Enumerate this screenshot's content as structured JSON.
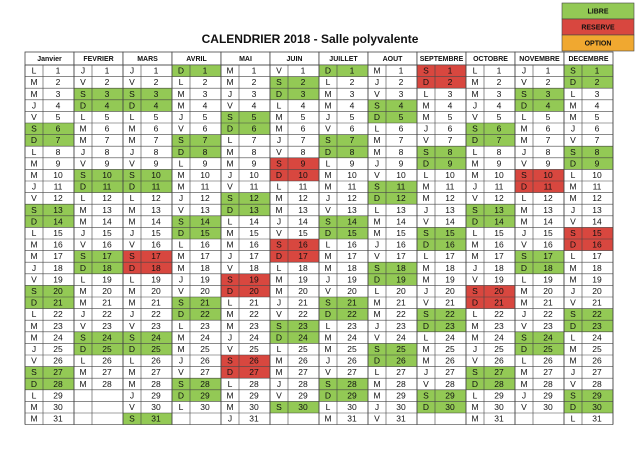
{
  "title": "CALENDRIER 2018 - Salle polyvalente",
  "legend": [
    {
      "label": "LIBRE",
      "color": "#93c955"
    },
    {
      "label": "RESERVE",
      "color": "#d8473f"
    },
    {
      "label": "OPTION",
      "color": "#f0a830"
    }
  ],
  "months": [
    {
      "name": "Janvier",
      "letters": [
        "L",
        "M",
        "M",
        "J",
        "V",
        "S",
        "D",
        "L",
        "M",
        "M",
        "J",
        "V",
        "S",
        "D",
        "L",
        "M",
        "M",
        "J",
        "V",
        "S",
        "D",
        "L",
        "M",
        "M",
        "J",
        "V",
        "S",
        "D",
        "L",
        "M",
        "M"
      ],
      "numbers": [
        1,
        2,
        3,
        4,
        5,
        6,
        7,
        8,
        9,
        10,
        11,
        12,
        13,
        14,
        15,
        16,
        17,
        18,
        19,
        20,
        21,
        22,
        23,
        24,
        25,
        26,
        27,
        28,
        29,
        30,
        31
      ],
      "colors": [
        null,
        null,
        null,
        null,
        null,
        "#93c955",
        "#93c955",
        null,
        null,
        null,
        null,
        null,
        "#93c955",
        "#93c955",
        null,
        null,
        null,
        null,
        null,
        "#93c955",
        "#93c955",
        null,
        null,
        null,
        null,
        null,
        "#93c955",
        "#93c955",
        null,
        null,
        null
      ]
    },
    {
      "name": "FEVRIER",
      "letters": [
        "J",
        "V",
        "S",
        "D",
        "L",
        "M",
        "M",
        "J",
        "V",
        "S",
        "D",
        "L",
        "M",
        "M",
        "J",
        "V",
        "S",
        "D",
        "L",
        "M",
        "M",
        "J",
        "V",
        "S",
        "D",
        "L",
        "M",
        "M"
      ],
      "numbers": [
        1,
        2,
        3,
        4,
        5,
        6,
        7,
        8,
        9,
        10,
        11,
        12,
        13,
        14,
        15,
        16,
        17,
        18,
        19,
        20,
        21,
        22,
        23,
        24,
        25,
        26,
        27,
        28
      ],
      "colors": [
        null,
        null,
        "#93c955",
        "#93c955",
        null,
        null,
        null,
        null,
        null,
        "#93c955",
        "#93c955",
        null,
        null,
        null,
        null,
        null,
        "#93c955",
        "#93c955",
        null,
        null,
        null,
        null,
        null,
        "#93c955",
        "#93c955",
        null,
        null,
        null
      ]
    },
    {
      "name": "MARS",
      "letters": [
        "J",
        "V",
        "S",
        "D",
        "L",
        "M",
        "M",
        "J",
        "V",
        "S",
        "D",
        "L",
        "M",
        "M",
        "J",
        "V",
        "S",
        "D",
        "L",
        "M",
        "M",
        "J",
        "V",
        "S",
        "D",
        "L",
        "M",
        "M",
        "J",
        "V",
        "S"
      ],
      "numbers": [
        1,
        2,
        3,
        4,
        5,
        6,
        7,
        8,
        9,
        10,
        11,
        12,
        13,
        14,
        15,
        16,
        17,
        18,
        19,
        20,
        21,
        22,
        23,
        24,
        25,
        26,
        27,
        28,
        29,
        30,
        31
      ],
      "colors": [
        null,
        null,
        "#93c955",
        "#93c955",
        null,
        null,
        null,
        null,
        null,
        "#93c955",
        "#93c955",
        null,
        null,
        null,
        null,
        null,
        "#d8473f",
        "#d8473f",
        null,
        null,
        null,
        null,
        null,
        "#93c955",
        "#93c955",
        null,
        null,
        null,
        null,
        null,
        "#93c955"
      ]
    },
    {
      "name": "AVRIL",
      "letters": [
        "D",
        "L",
        "M",
        "M",
        "J",
        "V",
        "S",
        "D",
        "L",
        "M",
        "M",
        "J",
        "V",
        "S",
        "D",
        "L",
        "M",
        "M",
        "J",
        "V",
        "S",
        "D",
        "L",
        "M",
        "M",
        "J",
        "V",
        "S",
        "D",
        "L"
      ],
      "numbers": [
        1,
        2,
        3,
        4,
        5,
        6,
        7,
        8,
        9,
        10,
        11,
        12,
        13,
        14,
        15,
        16,
        17,
        18,
        19,
        20,
        21,
        22,
        23,
        24,
        25,
        26,
        27,
        28,
        29,
        30
      ],
      "colors": [
        "#93c955",
        null,
        null,
        null,
        null,
        null,
        "#93c955",
        "#93c955",
        null,
        null,
        null,
        null,
        null,
        "#93c955",
        "#93c955",
        null,
        null,
        null,
        null,
        null,
        "#93c955",
        "#93c955",
        null,
        null,
        null,
        null,
        null,
        "#93c955",
        "#93c955",
        null
      ]
    },
    {
      "name": "MAI",
      "letters": [
        "M",
        "M",
        "J",
        "V",
        "S",
        "D",
        "L",
        "M",
        "M",
        "J",
        "V",
        "S",
        "D",
        "L",
        "M",
        "M",
        "J",
        "V",
        "S",
        "D",
        "L",
        "M",
        "M",
        "J",
        "V",
        "S",
        "D",
        "L",
        "M",
        "M",
        "J"
      ],
      "numbers": [
        1,
        2,
        3,
        4,
        5,
        6,
        7,
        8,
        9,
        10,
        11,
        12,
        13,
        14,
        15,
        16,
        17,
        18,
        19,
        20,
        21,
        22,
        23,
        24,
        25,
        26,
        27,
        28,
        29,
        30,
        31
      ],
      "colors": [
        null,
        null,
        null,
        null,
        "#93c955",
        "#93c955",
        null,
        null,
        null,
        null,
        null,
        "#93c955",
        "#93c955",
        null,
        null,
        null,
        null,
        null,
        "#d8473f",
        "#d8473f",
        null,
        null,
        null,
        null,
        null,
        "#d8473f",
        "#d8473f",
        null,
        null,
        null,
        null
      ]
    },
    {
      "name": "JUIN",
      "letters": [
        "V",
        "S",
        "D",
        "L",
        "M",
        "M",
        "J",
        "V",
        "S",
        "D",
        "L",
        "M",
        "M",
        "J",
        "V",
        "S",
        "D",
        "L",
        "M",
        "M",
        "J",
        "V",
        "S",
        "D",
        "L",
        "M",
        "M",
        "J",
        "V",
        "S"
      ],
      "numbers": [
        1,
        2,
        3,
        4,
        5,
        6,
        7,
        8,
        9,
        10,
        11,
        12,
        13,
        14,
        15,
        16,
        17,
        18,
        19,
        20,
        21,
        22,
        23,
        24,
        25,
        26,
        27,
        28,
        29,
        30
      ],
      "colors": [
        null,
        "#93c955",
        "#93c955",
        null,
        null,
        null,
        null,
        null,
        "#d8473f",
        "#d8473f",
        null,
        null,
        null,
        null,
        null,
        "#d8473f",
        "#d8473f",
        null,
        null,
        null,
        null,
        null,
        "#93c955",
        "#93c955",
        null,
        null,
        null,
        null,
        null,
        "#93c955"
      ]
    },
    {
      "name": "JUILLET",
      "letters": [
        "D",
        "L",
        "M",
        "M",
        "J",
        "V",
        "S",
        "D",
        "L",
        "M",
        "M",
        "J",
        "V",
        "S",
        "D",
        "L",
        "M",
        "M",
        "J",
        "V",
        "S",
        "D",
        "L",
        "M",
        "M",
        "J",
        "V",
        "S",
        "D",
        "L",
        "M"
      ],
      "numbers": [
        1,
        2,
        3,
        4,
        5,
        6,
        7,
        8,
        9,
        10,
        11,
        12,
        13,
        14,
        15,
        16,
        17,
        18,
        19,
        20,
        21,
        22,
        23,
        24,
        25,
        26,
        27,
        28,
        29,
        30,
        31
      ],
      "colors": [
        "#93c955",
        null,
        null,
        null,
        null,
        null,
        "#93c955",
        "#93c955",
        null,
        null,
        null,
        null,
        null,
        "#93c955",
        "#93c955",
        null,
        null,
        null,
        null,
        null,
        "#93c955",
        "#93c955",
        null,
        null,
        null,
        null,
        null,
        "#93c955",
        "#93c955",
        null,
        null
      ]
    },
    {
      "name": "AOUT",
      "letters": [
        "M",
        "J",
        "V",
        "S",
        "D",
        "L",
        "M",
        "M",
        "J",
        "V",
        "S",
        "D",
        "L",
        "M",
        "M",
        "J",
        "V",
        "S",
        "D",
        "L",
        "M",
        "M",
        "J",
        "V",
        "S",
        "D",
        "L",
        "M",
        "M",
        "J",
        "V"
      ],
      "numbers": [
        1,
        2,
        3,
        4,
        5,
        6,
        7,
        8,
        9,
        10,
        11,
        12,
        13,
        14,
        15,
        16,
        17,
        18,
        19,
        20,
        21,
        22,
        23,
        24,
        25,
        26,
        27,
        28,
        29,
        30,
        31
      ],
      "colors": [
        null,
        null,
        null,
        "#93c955",
        "#93c955",
        null,
        null,
        null,
        null,
        null,
        "#93c955",
        "#93c955",
        null,
        null,
        null,
        null,
        null,
        "#93c955",
        "#93c955",
        null,
        null,
        null,
        null,
        null,
        "#93c955",
        "#93c955",
        null,
        null,
        null,
        null,
        null
      ]
    },
    {
      "name": "SEPTEMBRE",
      "letters": [
        "S",
        "D",
        "L",
        "M",
        "M",
        "J",
        "V",
        "S",
        "D",
        "L",
        "M",
        "M",
        "J",
        "V",
        "S",
        "D",
        "L",
        "M",
        "M",
        "J",
        "V",
        "S",
        "D",
        "L",
        "M",
        "M",
        "J",
        "V",
        "S",
        "D"
      ],
      "numbers": [
        1,
        2,
        3,
        4,
        5,
        6,
        7,
        8,
        9,
        10,
        11,
        12,
        13,
        14,
        15,
        16,
        17,
        18,
        19,
        20,
        21,
        22,
        23,
        24,
        25,
        26,
        27,
        28,
        29,
        30
      ],
      "colors": [
        "#d8473f",
        "#d8473f",
        null,
        null,
        null,
        null,
        null,
        "#93c955",
        "#93c955",
        null,
        null,
        null,
        null,
        null,
        "#93c955",
        "#93c955",
        null,
        null,
        null,
        null,
        null,
        "#93c955",
        "#93c955",
        null,
        null,
        null,
        null,
        null,
        "#93c955",
        "#93c955"
      ]
    },
    {
      "name": "OCTOBRE",
      "letters": [
        "L",
        "M",
        "M",
        "J",
        "V",
        "S",
        "D",
        "L",
        "M",
        "M",
        "J",
        "V",
        "S",
        "D",
        "L",
        "M",
        "M",
        "J",
        "V",
        "S",
        "D",
        "L",
        "M",
        "M",
        "J",
        "V",
        "S",
        "D",
        "L",
        "M",
        "M"
      ],
      "numbers": [
        1,
        2,
        3,
        4,
        5,
        6,
        7,
        8,
        9,
        10,
        11,
        12,
        13,
        14,
        15,
        16,
        17,
        18,
        19,
        20,
        21,
        22,
        23,
        24,
        25,
        26,
        27,
        28,
        29,
        30,
        31
      ],
      "colors": [
        null,
        null,
        null,
        null,
        null,
        "#93c955",
        "#93c955",
        null,
        null,
        null,
        null,
        null,
        "#93c955",
        "#93c955",
        null,
        null,
        null,
        null,
        null,
        "#d8473f",
        "#d8473f",
        null,
        null,
        null,
        null,
        null,
        "#93c955",
        "#93c955",
        null,
        null,
        null
      ]
    },
    {
      "name": "NOVEMBRE",
      "letters": [
        "J",
        "V",
        "S",
        "D",
        "L",
        "M",
        "M",
        "J",
        "V",
        "S",
        "D",
        "L",
        "M",
        "M",
        "J",
        "V",
        "S",
        "D",
        "L",
        "M",
        "M",
        "J",
        "V",
        "S",
        "D",
        "L",
        "M",
        "M",
        "J",
        "V"
      ],
      "numbers": [
        1,
        2,
        3,
        4,
        5,
        6,
        7,
        8,
        9,
        10,
        11,
        12,
        13,
        14,
        15,
        16,
        17,
        18,
        19,
        20,
        21,
        22,
        23,
        24,
        25,
        26,
        27,
        28,
        29,
        30
      ],
      "colors": [
        null,
        null,
        "#93c955",
        "#93c955",
        null,
        null,
        null,
        null,
        null,
        "#d8473f",
        "#d8473f",
        null,
        null,
        null,
        null,
        null,
        "#93c955",
        "#93c955",
        null,
        null,
        null,
        null,
        null,
        "#93c955",
        "#93c955",
        null,
        null,
        null,
        null,
        null
      ]
    },
    {
      "name": "DECEMBRE",
      "letters": [
        "S",
        "D",
        "L",
        "M",
        "M",
        "J",
        "V",
        "S",
        "D",
        "L",
        "M",
        "M",
        "J",
        "V",
        "S",
        "D",
        "L",
        "M",
        "M",
        "J",
        "V",
        "S",
        "D",
        "L",
        "M",
        "M",
        "J",
        "V",
        "S",
        "D",
        "L"
      ],
      "numbers": [
        1,
        2,
        3,
        4,
        5,
        6,
        7,
        8,
        9,
        10,
        11,
        12,
        13,
        14,
        15,
        16,
        17,
        18,
        19,
        20,
        21,
        22,
        23,
        24,
        25,
        26,
        27,
        28,
        29,
        30,
        31
      ],
      "colors": [
        "#93c955",
        "#93c955",
        null,
        null,
        null,
        null,
        null,
        "#93c955",
        "#93c955",
        null,
        null,
        null,
        null,
        null,
        "#d8473f",
        "#d8473f",
        null,
        null,
        null,
        null,
        null,
        "#93c955",
        "#93c955",
        null,
        null,
        null,
        null,
        null,
        "#93c955",
        "#93c955",
        null
      ]
    }
  ]
}
